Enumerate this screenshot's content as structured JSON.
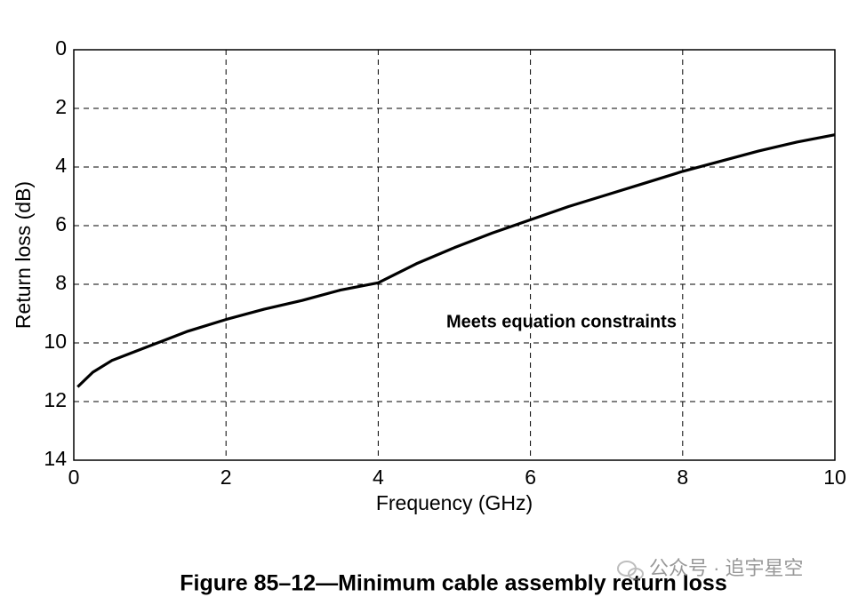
{
  "chart_data": {
    "type": "line",
    "x_label": "Frequency (GHz)",
    "y_label": "Return loss (dB)",
    "caption": "Figure 85–12—Minimum cable assembly return loss",
    "annotation": "Meets equation constraints",
    "watermark": "公众号 · 追宇星空",
    "xlim": [
      0,
      10
    ],
    "xticks": [
      0,
      2,
      4,
      6,
      8,
      10
    ],
    "ylim": [
      0,
      14
    ],
    "yticks": [
      0,
      2,
      4,
      6,
      8,
      10,
      12,
      14
    ],
    "y_inverted": true,
    "grid": true,
    "series": [
      {
        "color": "#000000",
        "x": [
          0.05,
          0.25,
          0.5,
          0.75,
          1,
          1.5,
          2,
          2.5,
          3,
          3.5,
          4,
          4.5,
          5,
          5.5,
          6,
          6.5,
          7,
          7.5,
          8,
          8.5,
          9,
          9.5,
          10
        ],
        "values": [
          11.5,
          11.0,
          10.6,
          10.35,
          10.1,
          9.6,
          9.2,
          8.85,
          8.55,
          8.2,
          7.95,
          7.3,
          6.75,
          6.25,
          5.8,
          5.35,
          4.95,
          4.55,
          4.15,
          3.8,
          3.45,
          3.15,
          2.9
        ]
      }
    ]
  }
}
